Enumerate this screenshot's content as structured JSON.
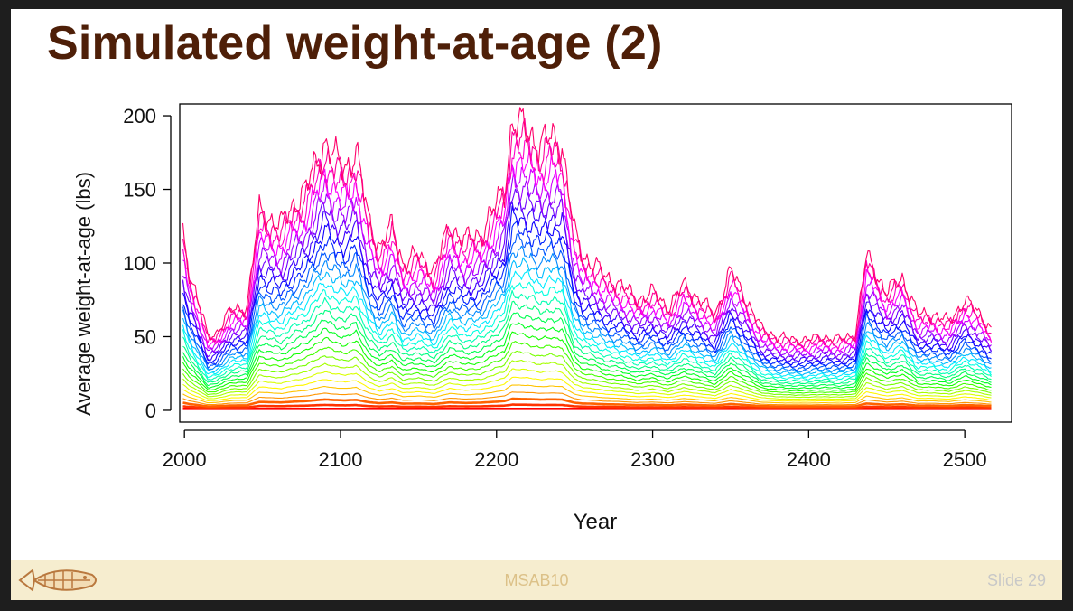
{
  "slide": {
    "title": "Simulated weight-at-age (2)",
    "footer_center": "MSAB10",
    "footer_right": "Slide 29",
    "logo_icon": "fish-logo-icon"
  },
  "colors": {
    "title": "#4e1f08",
    "footer_bg": "#f6edcf",
    "footer_center_text": "#dcc188",
    "footer_right_text": "#c8c8c8"
  },
  "chart_data": {
    "type": "line",
    "title": "",
    "xlabel": "Year",
    "ylabel": "Average weight-at-age (lbs)",
    "xlim": [
      1997,
      2530
    ],
    "ylim": [
      -8,
      208
    ],
    "xticks": [
      2000,
      2100,
      2200,
      2300,
      2400,
      2500
    ],
    "yticks": [
      0,
      50,
      100,
      150,
      200
    ],
    "grid": false,
    "legend": "none",
    "palette": "rainbow",
    "series_count": 30,
    "x_range": [
      1999,
      2517
    ],
    "max_age_profile": {
      "x": [
        1999,
        2003,
        2010,
        2015,
        2020,
        2030,
        2040,
        2048,
        2055,
        2062,
        2070,
        2078,
        2085,
        2090,
        2097,
        2103,
        2110,
        2118,
        2125,
        2133,
        2140,
        2150,
        2160,
        2170,
        2180,
        2190,
        2200,
        2205,
        2210,
        2220,
        2228,
        2235,
        2242,
        2250,
        2255,
        2262,
        2270,
        2280,
        2290,
        2300,
        2310,
        2320,
        2330,
        2340,
        2350,
        2360,
        2370,
        2380,
        2390,
        2400,
        2410,
        2420,
        2430,
        2437,
        2442,
        2450,
        2460,
        2470,
        2480,
        2490,
        2500,
        2510,
        2517
      ],
      "y": [
        120,
        95,
        70,
        50,
        52,
        68,
        70,
        135,
        130,
        125,
        140,
        150,
        170,
        182,
        170,
        165,
        175,
        130,
        110,
        125,
        100,
        105,
        95,
        125,
        115,
        120,
        140,
        150,
        195,
        190,
        180,
        185,
        180,
        120,
        105,
        100,
        90,
        85,
        75,
        80,
        70,
        85,
        75,
        65,
        95,
        75,
        55,
        50,
        48,
        48,
        50,
        48,
        52,
        105,
        95,
        80,
        90,
        65,
        65,
        60,
        75,
        65,
        55
      ]
    },
    "min_age_weight": 1,
    "notes_series_values": "Each of the 30 age-class series follows the max-age profile scaled by its age fraction (values shown from ~1 lb up to ~200 lbs)."
  }
}
